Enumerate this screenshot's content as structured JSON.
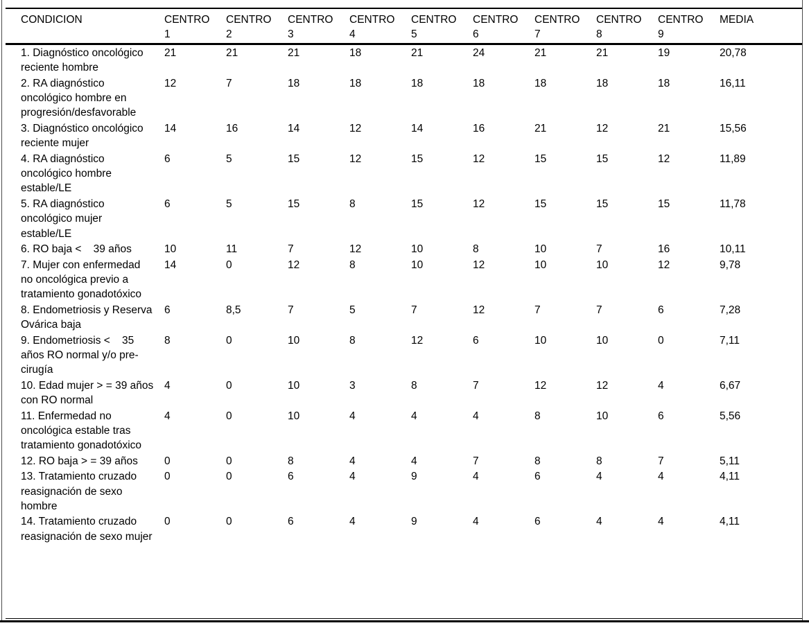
{
  "page": {
    "background": "#ffffff",
    "text_color": "#000000",
    "rule_color": "#000000",
    "frame_color": "#4a4a4a"
  },
  "table": {
    "columns": [
      {
        "name": "column-header-condicion",
        "label": "CONDICION"
      },
      {
        "name": "column-header-centro-1",
        "label": "CENTRO\n1"
      },
      {
        "name": "column-header-centro-2",
        "label": "CENTRO\n2"
      },
      {
        "name": "column-header-centro-3",
        "label": "CENTRO\n3"
      },
      {
        "name": "column-header-centro-4",
        "label": "CENTRO\n4"
      },
      {
        "name": "column-header-centro-5",
        "label": "CENTRO\n5"
      },
      {
        "name": "column-header-centro-6",
        "label": "CENTRO\n6"
      },
      {
        "name": "column-header-centro-7",
        "label": "CENTRO\n7"
      },
      {
        "name": "column-header-centro-8",
        "label": "CENTRO\n8"
      },
      {
        "name": "column-header-centro-9",
        "label": "CENTRO\n9"
      },
      {
        "name": "column-header-media",
        "label": "MEDIA"
      }
    ],
    "rows": [
      {
        "condition": "1. Diagnóstico oncológico reciente hombre",
        "values": [
          "21",
          "21",
          "21",
          "18",
          "21",
          "24",
          "21",
          "21",
          "19"
        ],
        "media": "20,78"
      },
      {
        "condition": "2. RA diagnóstico oncológico hombre en progresión/desfavorable",
        "values": [
          "12",
          "7",
          "18",
          "18",
          "18",
          "18",
          "18",
          "18",
          "18"
        ],
        "media": "16,11"
      },
      {
        "condition": "3. Diagnóstico oncológico reciente mujer",
        "values": [
          "14",
          "16",
          "14",
          "12",
          "14",
          "16",
          "21",
          "12",
          "21"
        ],
        "media": "15,56"
      },
      {
        "condition": "4. RA diagnóstico oncológico hombre estable/LE",
        "values": [
          "6",
          "5",
          "15",
          "12",
          "15",
          "12",
          "15",
          "15",
          "12"
        ],
        "media": "11,89"
      },
      {
        "condition": "5. RA diagnóstico oncológico mujer estable/LE",
        "values": [
          "6",
          "5",
          "15",
          "8",
          "15",
          "12",
          "15",
          "15",
          "15"
        ],
        "media": "11,78"
      },
      {
        "condition": "6. RO baja <    39 años",
        "values": [
          "10",
          "11",
          "7",
          "12",
          "10",
          "8",
          "10",
          "7",
          "16"
        ],
        "media": "10,11"
      },
      {
        "condition": "7. Mujer con enfermedad no oncológica previo a tratamiento gonadotóxico",
        "values": [
          "14",
          "0",
          "12",
          "8",
          "10",
          "12",
          "10",
          "10",
          "12"
        ],
        "media": "9,78"
      },
      {
        "condition": "8. Endometriosis y Reserva Ovárica baja",
        "values": [
          "6",
          "8,5",
          "7",
          "5",
          "7",
          "12",
          "7",
          "7",
          "6"
        ],
        "media": "7,28"
      },
      {
        "condition": "9. Endometriosis <    35 años RO normal y/o pre-cirugía",
        "values": [
          "8",
          "0",
          "10",
          "8",
          "12",
          "6",
          "10",
          "10",
          "0"
        ],
        "media": "7,11"
      },
      {
        "condition": "10. Edad mujer > = 39 años con RO normal",
        "values": [
          "4",
          "0",
          "10",
          "3",
          "8",
          "7",
          "12",
          "12",
          "4"
        ],
        "media": "6,67"
      },
      {
        "condition": "11. Enfermedad no oncológica estable tras tratamiento gonadotóxico",
        "values": [
          "4",
          "0",
          "10",
          "4",
          "4",
          "4",
          "8",
          "10",
          "6"
        ],
        "media": "5,56"
      },
      {
        "condition": "12. RO baja > = 39 años",
        "values": [
          "0",
          "0",
          "8",
          "4",
          "4",
          "7",
          "8",
          "8",
          "7"
        ],
        "media": "5,11"
      },
      {
        "condition": "13. Tratamiento cruzado reasignación de sexo hombre",
        "values": [
          "0",
          "0",
          "6",
          "4",
          "9",
          "4",
          "6",
          "4",
          "4"
        ],
        "media": "4,11"
      },
      {
        "condition": "14. Tratamiento cruzado reasignación de sexo mujer",
        "values": [
          "0",
          "0",
          "6",
          "4",
          "9",
          "4",
          "6",
          "4",
          "4"
        ],
        "media": "4,11"
      }
    ]
  }
}
